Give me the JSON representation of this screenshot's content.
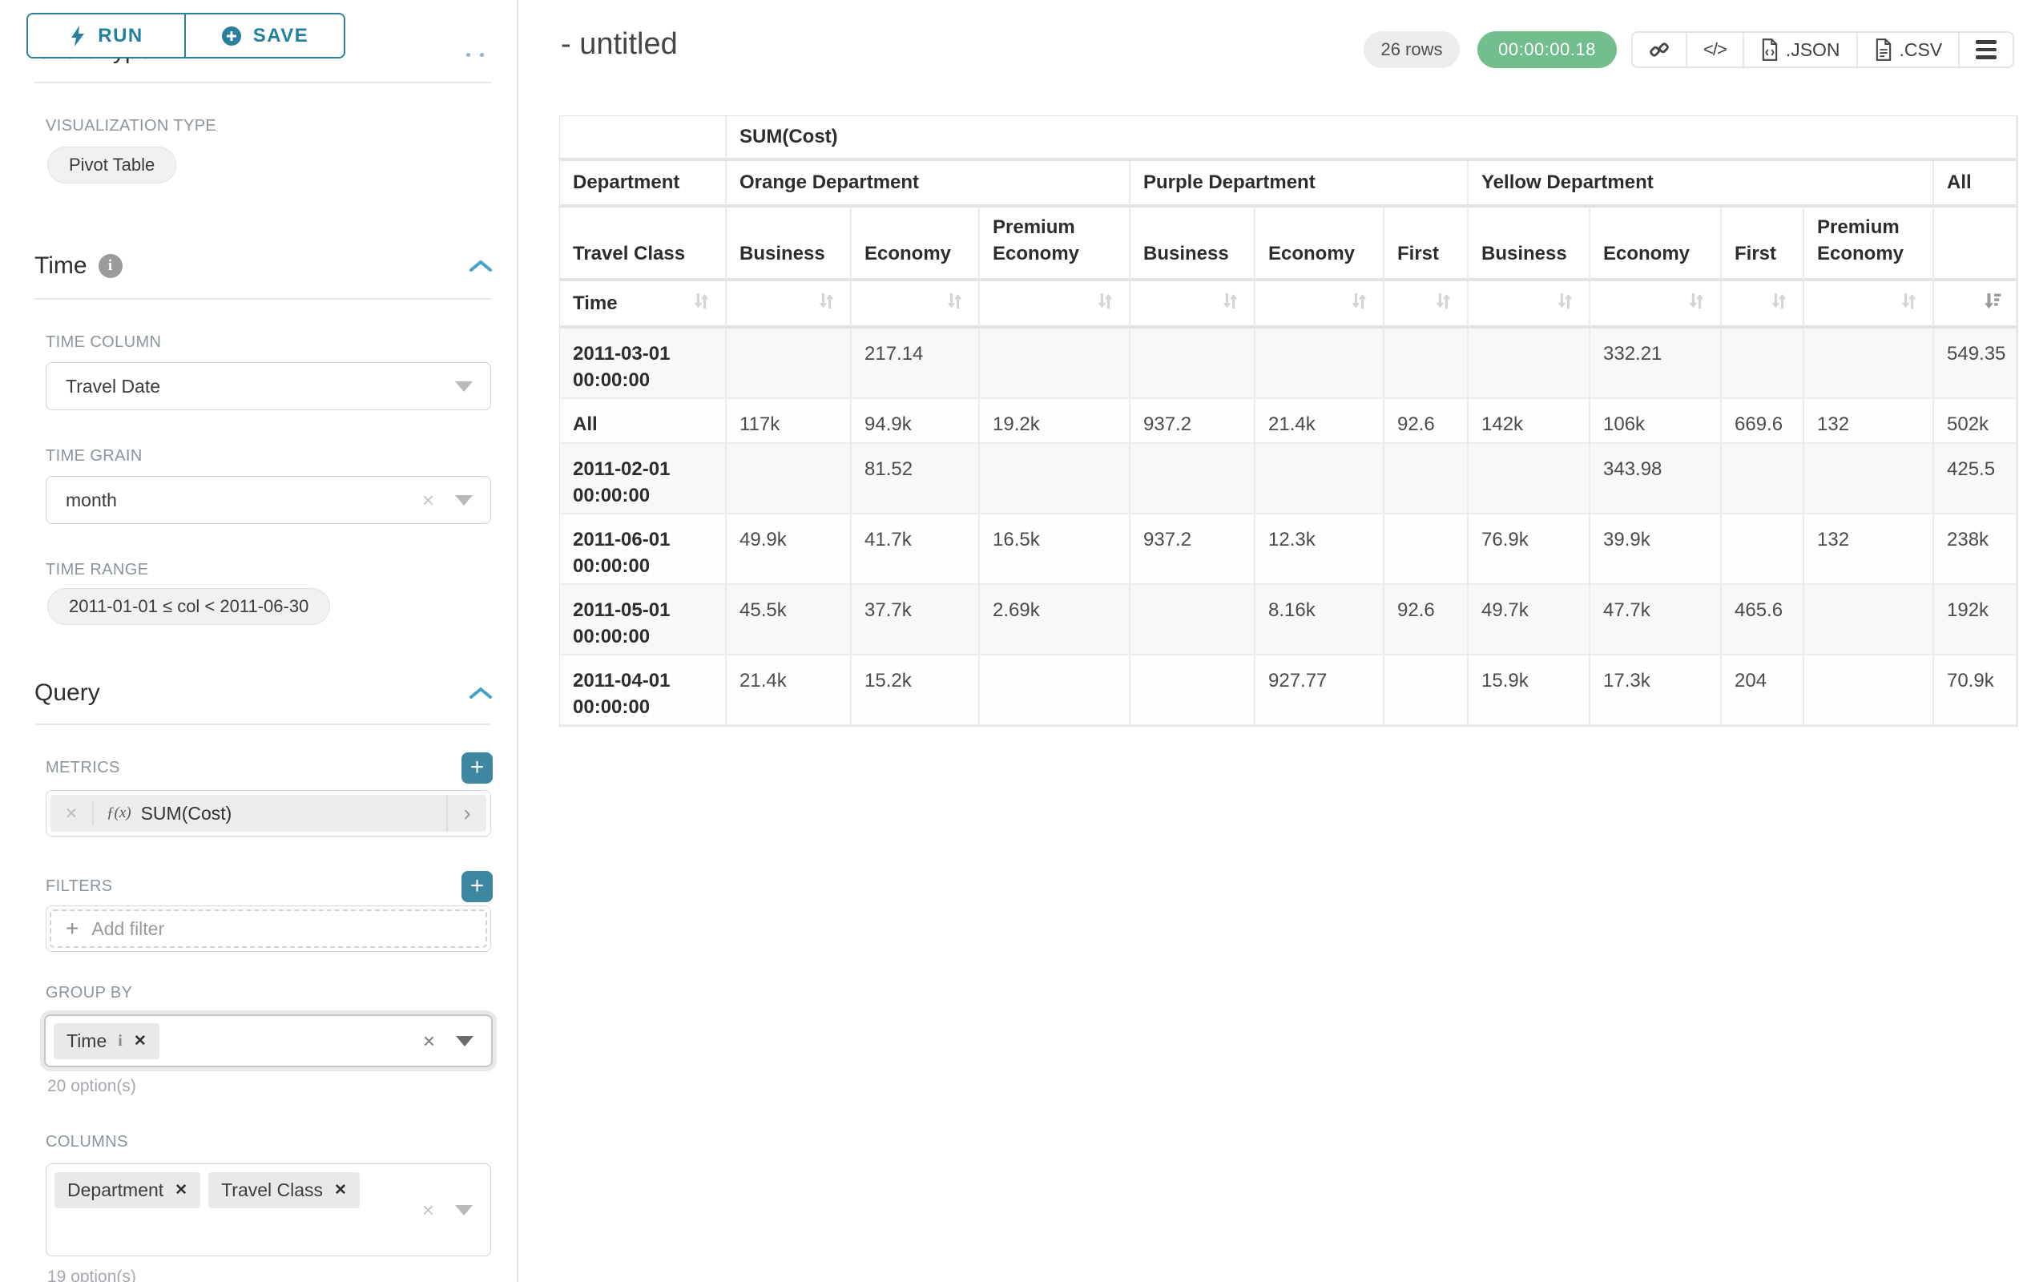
{
  "colors": {
    "accent_teal": "#2A7F9E",
    "add_button_teal": "#3E87A0",
    "success_green": "#72BE8C",
    "badge_grey": "#ECECEC",
    "chevron_blue": "#45A3C8"
  },
  "icons": {
    "run": "lightning-bolt",
    "save": "plus-circle",
    "section_collapse": "chevron-up",
    "info": "circle-i",
    "select_caret": "triangle-down",
    "select_clear": "x",
    "chip_close": "x-bold",
    "add": "plus",
    "metric_function": "f(x)",
    "metric_expand": "chevron-right",
    "share_link": "chain",
    "embed_code": "angle-brackets",
    "export_json": "file-code",
    "export_csv": "file-lines",
    "menu": "hamburger",
    "sort": "up-down-arrows",
    "sort_active": "arrow-down-bars"
  },
  "left_panel": {
    "run_label": "RUN",
    "save_label": "SAVE",
    "chart_type_heading": "Chart Type",
    "visualization_type_label": "VISUALIZATION TYPE",
    "visualization_type_value": "Pivot Table",
    "time_section_title": "Time",
    "time_column_label": "TIME COLUMN",
    "time_column_value": "Travel Date",
    "time_grain_label": "TIME GRAIN",
    "time_grain_value": "month",
    "time_range_label": "TIME RANGE",
    "time_range_value": "2011-01-01 ≤ col < 2011-06-30",
    "query_section_title": "Query",
    "metrics_label": "METRICS",
    "metric_function_prefix": "ƒ(x)",
    "metric_value": "SUM(Cost)",
    "filters_label": "FILTERS",
    "add_filter_label": "Add filter",
    "group_by_label": "GROUP BY",
    "group_by_chips": [
      {
        "label": "Time",
        "info": true
      }
    ],
    "group_by_hint": "20 option(s)",
    "columns_label": "COLUMNS",
    "columns_chips": [
      {
        "label": "Department"
      },
      {
        "label": "Travel Class"
      }
    ],
    "columns_hint": "19 option(s)"
  },
  "header": {
    "title": "- untitled",
    "rows_badge": "26 rows",
    "duration_badge": "00:00:00.18",
    "export_json_label": ".JSON",
    "export_csv_label": ".CSV"
  },
  "chart_data": {
    "type": "table",
    "metric_header": "SUM(Cost)",
    "department_label": "Department",
    "travel_class_label": "Travel Class",
    "time_label": "Time",
    "column_groups": [
      {
        "department": "Orange Department",
        "classes": [
          "Business",
          "Economy",
          "Premium Economy"
        ]
      },
      {
        "department": "Purple Department",
        "classes": [
          "Business",
          "Economy",
          "First"
        ]
      },
      {
        "department": "Yellow Department",
        "classes": [
          "Business",
          "Economy",
          "First",
          "Premium Economy"
        ]
      },
      {
        "department": "All",
        "classes": [
          ""
        ]
      }
    ],
    "rows": [
      {
        "time": "2011-03-01 00:00:00",
        "values": [
          "",
          "217.14",
          "",
          "",
          "",
          "",
          "",
          "332.21",
          "",
          "",
          "549.35"
        ]
      },
      {
        "time": "All",
        "values": [
          "117k",
          "94.9k",
          "19.2k",
          "937.2",
          "21.4k",
          "92.6",
          "142k",
          "106k",
          "669.6",
          "132",
          "502k"
        ]
      },
      {
        "time": "2011-02-01 00:00:00",
        "values": [
          "",
          "81.52",
          "",
          "",
          "",
          "",
          "",
          "343.98",
          "",
          "",
          "425.5"
        ]
      },
      {
        "time": "2011-06-01 00:00:00",
        "values": [
          "49.9k",
          "41.7k",
          "16.5k",
          "937.2",
          "12.3k",
          "",
          "76.9k",
          "39.9k",
          "",
          "132",
          "238k"
        ]
      },
      {
        "time": "2011-05-01 00:00:00",
        "values": [
          "45.5k",
          "37.7k",
          "2.69k",
          "",
          "8.16k",
          "92.6",
          "49.7k",
          "47.7k",
          "465.6",
          "",
          "192k"
        ]
      },
      {
        "time": "2011-04-01 00:00:00",
        "values": [
          "21.4k",
          "15.2k",
          "",
          "",
          "927.77",
          "",
          "15.9k",
          "17.3k",
          "204",
          "",
          "70.9k"
        ]
      }
    ],
    "sort": {
      "column": "All",
      "direction": "desc"
    }
  }
}
